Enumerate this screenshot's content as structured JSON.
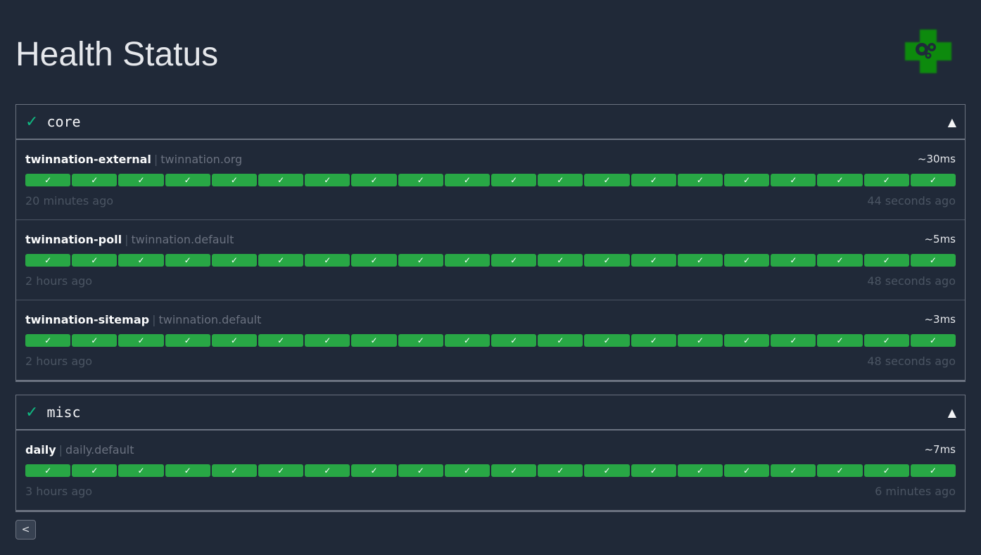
{
  "page": {
    "title": "Health Status",
    "logo": "health-gears-logo"
  },
  "colors": {
    "background": "#202938",
    "success": "#28a745",
    "group_check": "#10b981"
  },
  "groups": [
    {
      "name": "core",
      "status_icon": "✓",
      "toggle_icon": "▲",
      "endpoints": [
        {
          "name": "twinnation-external",
          "group": "twinnation.org",
          "response_time": "~30ms",
          "oldest": "20 minutes ago",
          "newest": "44 seconds ago",
          "results": [
            "success",
            "success",
            "success",
            "success",
            "success",
            "success",
            "success",
            "success",
            "success",
            "success",
            "success",
            "success",
            "success",
            "success",
            "success",
            "success",
            "success",
            "success",
            "success",
            "success"
          ]
        },
        {
          "name": "twinnation-poll",
          "group": "twinnation.default",
          "response_time": "~5ms",
          "oldest": "2 hours ago",
          "newest": "48 seconds ago",
          "results": [
            "success",
            "success",
            "success",
            "success",
            "success",
            "success",
            "success",
            "success",
            "success",
            "success",
            "success",
            "success",
            "success",
            "success",
            "success",
            "success",
            "success",
            "success",
            "success",
            "success"
          ]
        },
        {
          "name": "twinnation-sitemap",
          "group": "twinnation.default",
          "response_time": "~3ms",
          "oldest": "2 hours ago",
          "newest": "48 seconds ago",
          "results": [
            "success",
            "success",
            "success",
            "success",
            "success",
            "success",
            "success",
            "success",
            "success",
            "success",
            "success",
            "success",
            "success",
            "success",
            "success",
            "success",
            "success",
            "success",
            "success",
            "success"
          ]
        }
      ]
    },
    {
      "name": "misc",
      "status_icon": "✓",
      "toggle_icon": "▲",
      "endpoints": [
        {
          "name": "daily",
          "group": "daily.default",
          "response_time": "~7ms",
          "oldest": "3 hours ago",
          "newest": "6 minutes ago",
          "results": [
            "success",
            "success",
            "success",
            "success",
            "success",
            "success",
            "success",
            "success",
            "success",
            "success",
            "success",
            "success",
            "success",
            "success",
            "success",
            "success",
            "success",
            "success",
            "success",
            "success"
          ]
        }
      ]
    }
  ],
  "result_icon": "✓",
  "separator": "|",
  "back_button": {
    "label": "<"
  }
}
